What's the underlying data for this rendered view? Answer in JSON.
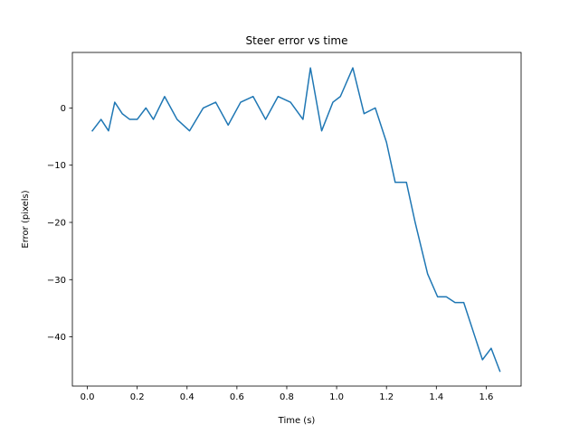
{
  "chart_data": {
    "type": "line",
    "title": "Steer error vs time",
    "xlabel": "Time (s)",
    "ylabel": "Error (pixels)",
    "xlim": [
      -0.06,
      1.74
    ],
    "ylim": [
      -48.6,
      9.7
    ],
    "xticks": [
      0.0,
      0.2,
      0.4,
      0.6,
      0.8,
      1.0,
      1.2,
      1.4,
      1.6
    ],
    "xtick_labels": [
      "0.0",
      "0.2",
      "0.4",
      "0.6",
      "0.8",
      "1.0",
      "1.2",
      "1.4",
      "1.6"
    ],
    "yticks": [
      0,
      -10,
      -20,
      -30,
      -40
    ],
    "ytick_labels": [
      "0",
      "−10",
      "−20",
      "−30",
      "−40"
    ],
    "grid": false,
    "series": [
      {
        "color": "#1f77b4",
        "x": [
          0.02,
          0.055,
          0.085,
          0.11,
          0.14,
          0.17,
          0.2,
          0.235,
          0.265,
          0.31,
          0.36,
          0.41,
          0.465,
          0.515,
          0.565,
          0.615,
          0.665,
          0.715,
          0.765,
          0.815,
          0.865,
          0.895,
          0.94,
          0.985,
          1.015,
          1.065,
          1.11,
          1.155,
          1.2,
          1.235,
          1.28,
          1.315,
          1.365,
          1.405,
          1.44,
          1.475,
          1.51,
          1.555,
          1.585,
          1.62,
          1.655
        ],
        "y": [
          -4,
          -2,
          -4,
          1,
          -1,
          -2,
          -2,
          0,
          -2,
          2,
          -2,
          -4,
          0,
          1,
          -3,
          1,
          2,
          -2,
          2,
          1,
          -2,
          7,
          -4,
          1,
          2,
          7,
          -1,
          0,
          -6,
          -13,
          -13,
          -20,
          -29,
          -33,
          -33,
          -34,
          -34,
          -40,
          -44,
          -42,
          -46
        ]
      }
    ]
  }
}
